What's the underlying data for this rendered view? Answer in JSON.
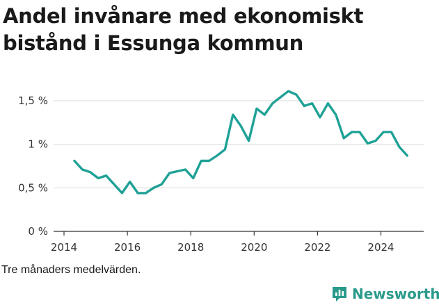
{
  "title": "Andel invånare med ekonomiskt bistånd i Essunga kommun",
  "note": "Tre månaders medelvärden.",
  "brand": {
    "name": "Newsworthy",
    "icon": "bar-chart-speech-icon",
    "color": "#2a9a8a"
  },
  "colors": {
    "line": "#1fa196",
    "grid": "#d9d9d9",
    "axis": "#333333"
  },
  "chart_data": {
    "type": "line",
    "title": "Andel invånare med ekonomiskt bistånd i Essunga kommun",
    "xlabel": "",
    "ylabel": "",
    "xlim": [
      2014,
      2025.4
    ],
    "ylim": [
      0,
      1.5
    ],
    "x_ticks": [
      2014,
      2016,
      2018,
      2020,
      2022,
      2024
    ],
    "x_tick_labels": [
      "2014",
      "2016",
      "2018",
      "2020",
      "2022",
      "2024"
    ],
    "y_ticks": [
      0,
      0.5,
      1,
      1.5
    ],
    "y_tick_labels": [
      "0 %",
      "0,5 %",
      "1 %",
      "1,5 %"
    ],
    "grid": true,
    "series": [
      {
        "name": "Andel invånare med ekonomiskt bistånd",
        "x": [
          2014.33,
          2014.58,
          2014.83,
          2015.08,
          2015.33,
          2015.58,
          2015.83,
          2016.08,
          2016.33,
          2016.58,
          2016.83,
          2017.08,
          2017.33,
          2017.58,
          2017.83,
          2018.08,
          2018.33,
          2018.58,
          2018.83,
          2019.08,
          2019.33,
          2019.58,
          2019.83,
          2020.08,
          2020.33,
          2020.58,
          2020.83,
          2021.08,
          2021.33,
          2021.58,
          2021.83,
          2022.08,
          2022.33,
          2022.58,
          2022.83,
          2023.08,
          2023.33,
          2023.58,
          2023.83,
          2024.08,
          2024.33,
          2024.58,
          2024.83
        ],
        "values": [
          0.81,
          0.71,
          0.68,
          0.61,
          0.64,
          0.54,
          0.44,
          0.57,
          0.44,
          0.44,
          0.5,
          0.54,
          0.67,
          0.69,
          0.71,
          0.61,
          0.81,
          0.81,
          0.87,
          0.94,
          1.34,
          1.21,
          1.04,
          1.41,
          1.34,
          1.47,
          1.54,
          1.61,
          1.57,
          1.44,
          1.47,
          1.31,
          1.47,
          1.34,
          1.07,
          1.14,
          1.14,
          1.01,
          1.04,
          1.14,
          1.14,
          0.97,
          0.87
        ]
      }
    ]
  }
}
